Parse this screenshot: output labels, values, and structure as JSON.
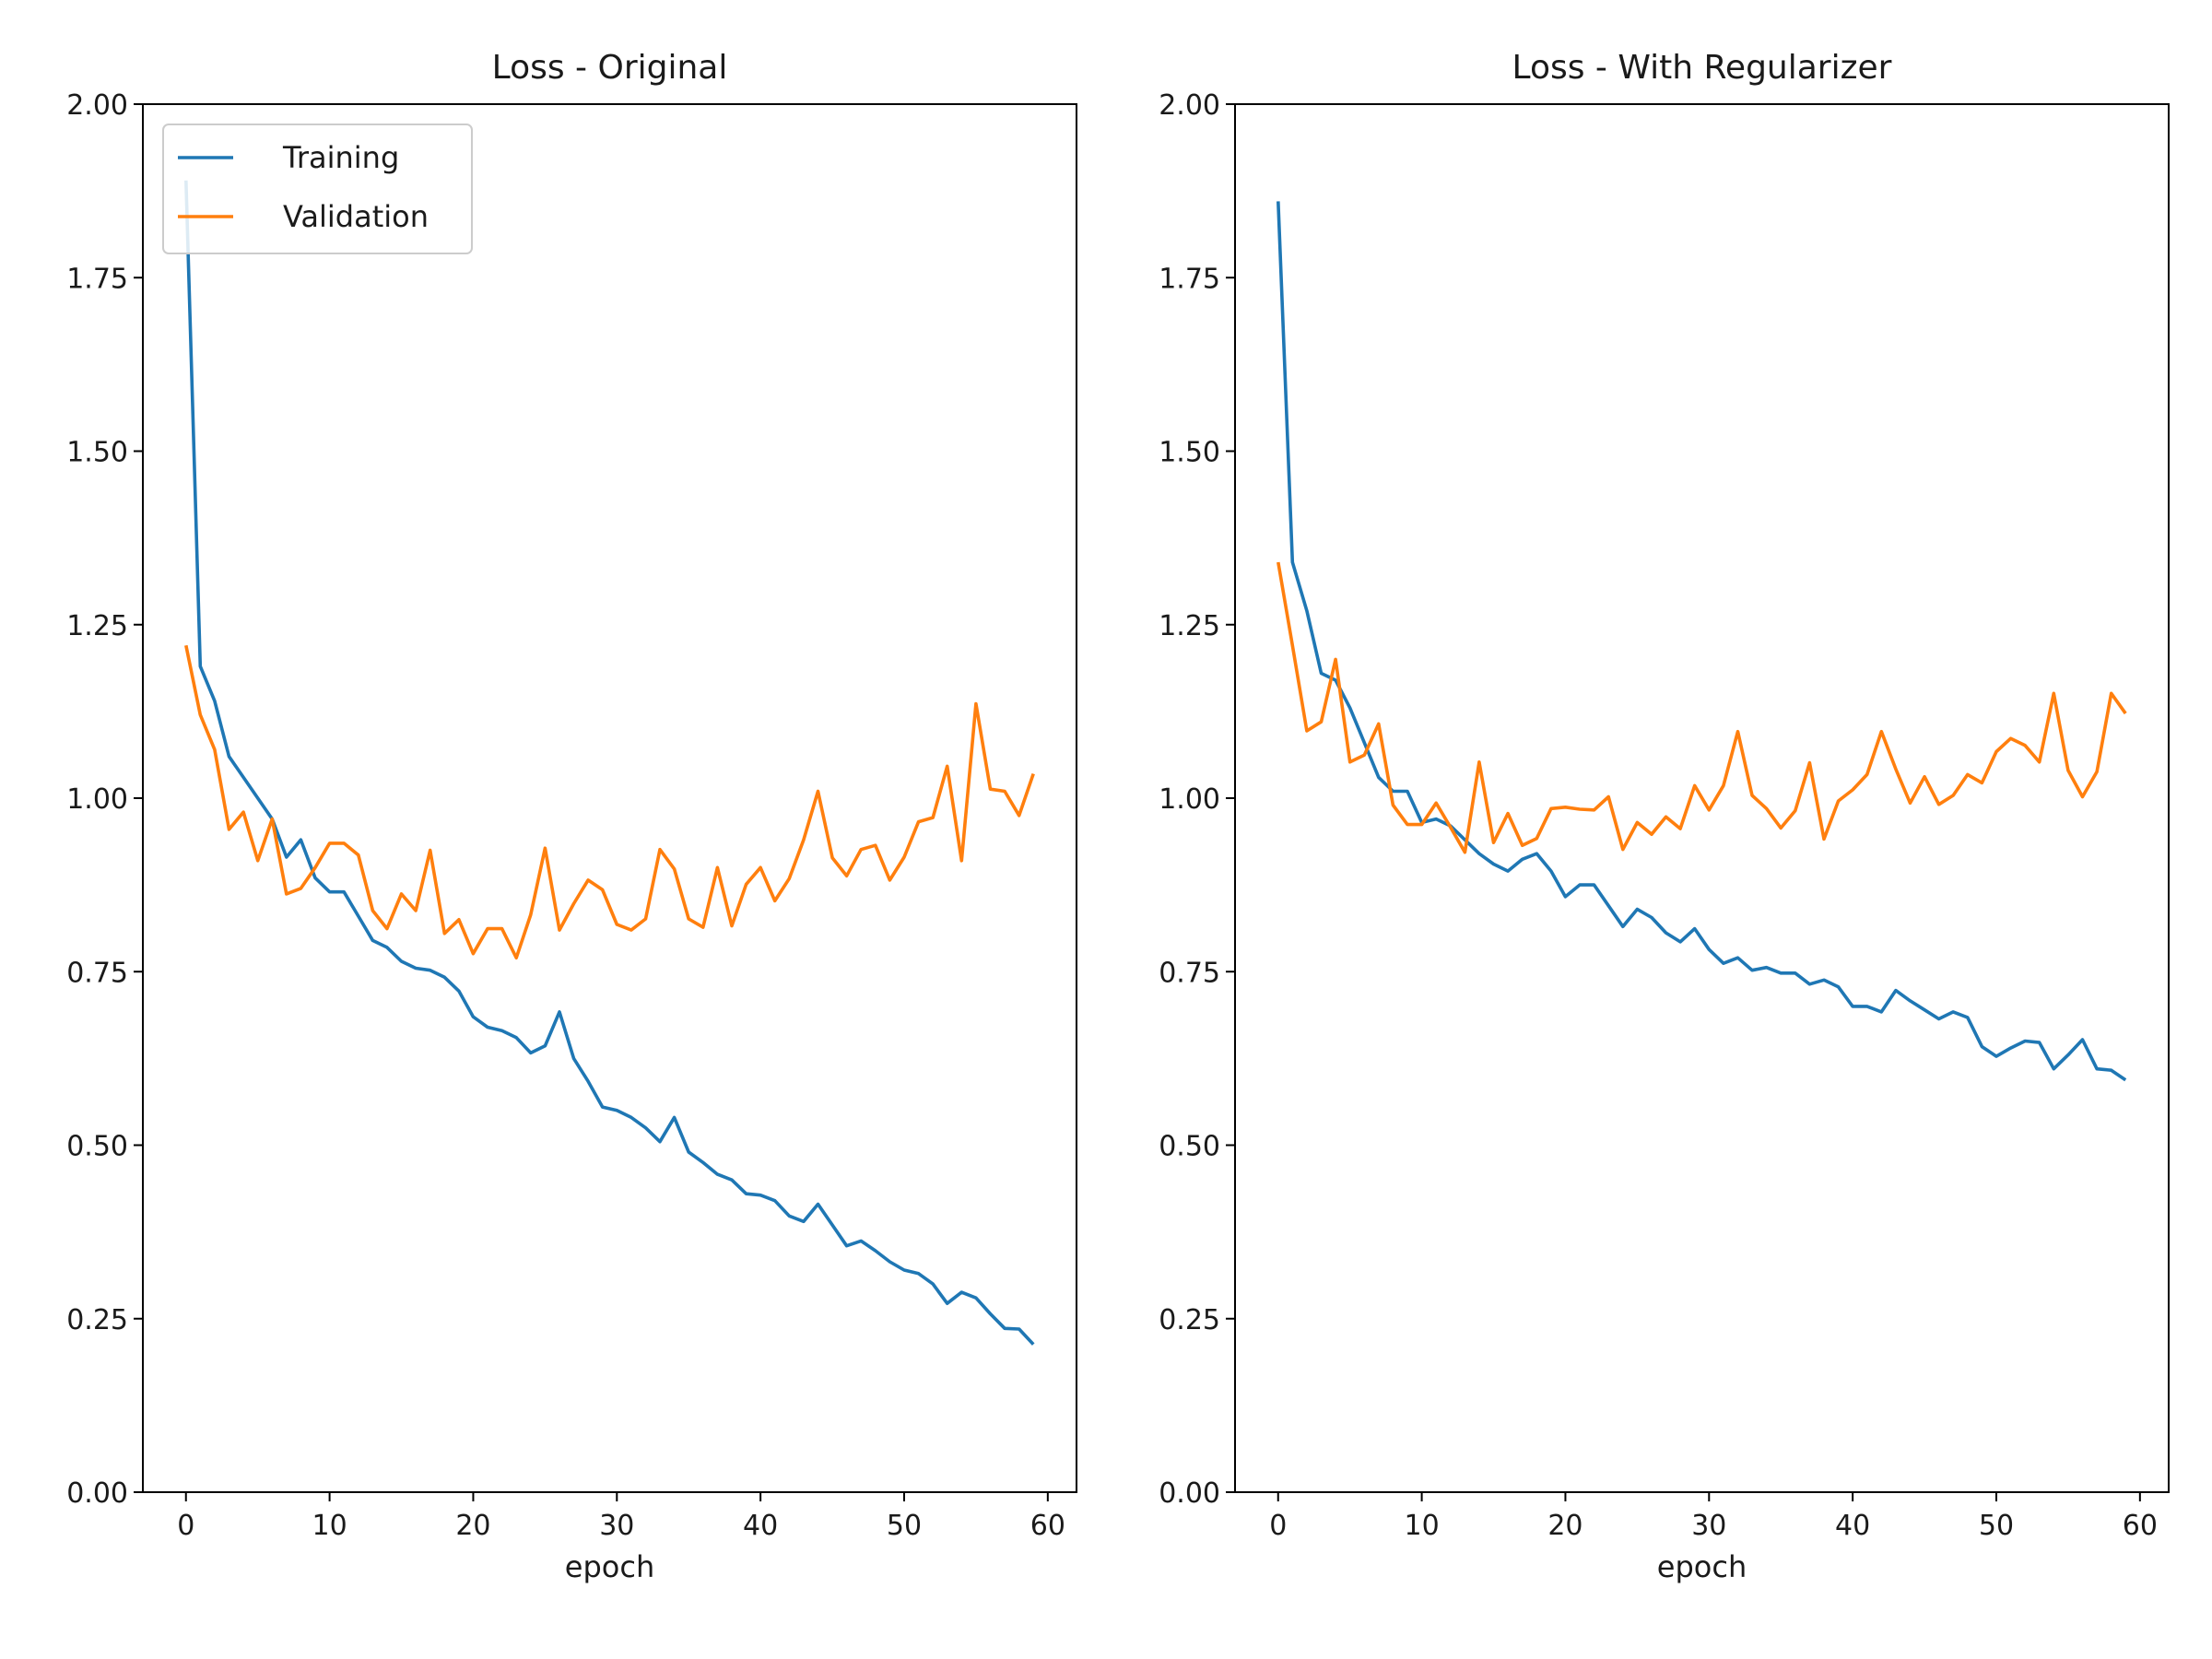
{
  "chart_data": [
    {
      "type": "line",
      "title": "Loss - Original",
      "xlabel": "epoch",
      "ylabel": "",
      "xlim": [
        -3,
        62
      ],
      "ylim": [
        0,
        2
      ],
      "xticks": [
        0,
        10,
        20,
        30,
        40,
        50,
        60
      ],
      "yticks": [
        "0.00",
        "0.25",
        "0.50",
        "0.75",
        "1.00",
        "1.25",
        "1.50",
        "1.75",
        "2.00"
      ],
      "grid": false,
      "legend": "upper-left",
      "x": [
        0,
        1,
        2,
        3,
        4,
        5,
        6,
        7,
        8,
        9,
        10,
        11,
        12,
        13,
        14,
        15,
        16,
        17,
        18,
        19,
        20,
        21,
        22,
        23,
        24,
        25,
        26,
        27,
        28,
        29,
        30,
        31,
        32,
        33,
        34,
        35,
        36,
        37,
        38,
        39,
        40,
        41,
        42,
        43,
        44,
        45,
        46,
        47,
        48,
        49,
        50,
        51,
        52,
        53,
        54,
        55,
        56,
        57,
        58,
        59
      ],
      "series": [
        {
          "name": "Training",
          "color": "#1f77b4",
          "values": [
            1.89,
            1.19,
            1.14,
            1.06,
            1.03,
            1.0,
            0.97,
            0.915,
            0.94,
            0.885,
            0.865,
            0.865,
            0.83,
            0.795,
            0.785,
            0.765,
            0.755,
            0.752,
            0.742,
            0.722,
            0.685,
            0.67,
            0.665,
            0.655,
            0.633,
            0.643,
            0.692,
            0.625,
            0.592,
            0.555,
            0.55,
            0.54,
            0.525,
            0.505,
            0.54,
            0.49,
            0.475,
            0.458,
            0.45,
            0.43,
            0.428,
            0.42,
            0.398,
            0.39,
            0.415,
            0.385,
            0.355,
            0.362,
            0.348,
            0.332,
            0.32,
            0.315,
            0.3,
            0.272,
            0.288,
            0.28,
            0.257,
            0.236,
            0.235,
            0.213
          ]
        },
        {
          "name": "Validation",
          "color": "#ff7f0e",
          "values": [
            1.22,
            1.12,
            1.07,
            0.955,
            0.98,
            0.91,
            0.97,
            0.862,
            0.87,
            0.9,
            0.935,
            0.935,
            0.918,
            0.838,
            0.812,
            0.862,
            0.838,
            0.925,
            0.805,
            0.825,
            0.776,
            0.812,
            0.812,
            0.77,
            0.832,
            0.928,
            0.81,
            0.848,
            0.882,
            0.868,
            0.818,
            0.81,
            0.826,
            0.926,
            0.898,
            0.826,
            0.814,
            0.9,
            0.816,
            0.876,
            0.9,
            0.852,
            0.884,
            0.94,
            1.01,
            0.914,
            0.888,
            0.926,
            0.932,
            0.882,
            0.915,
            0.966,
            0.972,
            1.046,
            0.91,
            1.136,
            1.013,
            1.01,
            0.975,
            1.035
          ]
        }
      ]
    },
    {
      "type": "line",
      "title": "Loss - With Regularizer",
      "xlabel": "epoch",
      "ylabel": "",
      "xlim": [
        -3,
        62
      ],
      "ylim": [
        0,
        2
      ],
      "xticks": [
        0,
        10,
        20,
        30,
        40,
        50,
        60
      ],
      "yticks": [
        "0.00",
        "0.25",
        "0.50",
        "0.75",
        "1.00",
        "1.25",
        "1.50",
        "1.75",
        "2.00"
      ],
      "grid": false,
      "legend": "none",
      "x": [
        0,
        1,
        2,
        3,
        4,
        5,
        6,
        7,
        8,
        9,
        10,
        11,
        12,
        13,
        14,
        15,
        16,
        17,
        18,
        19,
        20,
        21,
        22,
        23,
        24,
        25,
        26,
        27,
        28,
        29,
        30,
        31,
        32,
        33,
        34,
        35,
        36,
        37,
        38,
        39,
        40,
        41,
        42,
        43,
        44,
        45,
        46,
        47,
        48,
        49,
        50,
        51,
        52,
        53,
        54,
        55,
        56,
        57,
        58,
        59
      ],
      "series": [
        {
          "name": "Training",
          "color": "#1f77b4",
          "values": [
            1.86,
            1.34,
            1.27,
            1.18,
            1.17,
            1.13,
            1.08,
            1.03,
            1.01,
            1.01,
            0.965,
            0.97,
            0.96,
            0.94,
            0.92,
            0.905,
            0.895,
            0.912,
            0.92,
            0.895,
            0.858,
            0.875,
            0.875,
            0.845,
            0.815,
            0.84,
            0.828,
            0.806,
            0.793,
            0.812,
            0.782,
            0.762,
            0.77,
            0.752,
            0.756,
            0.748,
            0.748,
            0.732,
            0.738,
            0.728,
            0.7,
            0.7,
            0.692,
            0.723,
            0.708,
            0.695,
            0.682,
            0.692,
            0.684,
            0.642,
            0.628,
            0.64,
            0.65,
            0.648,
            0.61,
            0.63,
            0.652,
            0.61,
            0.608,
            0.594
          ]
        },
        {
          "name": "Validation",
          "color": "#ff7f0e",
          "values": [
            1.34,
            1.22,
            1.097,
            1.11,
            1.2,
            1.052,
            1.062,
            1.107,
            0.99,
            0.962,
            0.962,
            0.993,
            0.958,
            0.922,
            1.052,
            0.936,
            0.978,
            0.932,
            0.942,
            0.985,
            0.987,
            0.984,
            0.983,
            1.002,
            0.926,
            0.965,
            0.948,
            0.973,
            0.956,
            1.018,
            0.983,
            1.018,
            1.096,
            1.004,
            0.985,
            0.957,
            0.982,
            1.051,
            0.941,
            0.996,
            1.012,
            1.034,
            1.096,
            1.042,
            0.993,
            1.031,
            0.991,
            1.004,
            1.034,
            1.022,
            1.067,
            1.086,
            1.076,
            1.052,
            1.151,
            1.04,
            1.002,
            1.038,
            1.151,
            1.122
          ]
        }
      ]
    }
  ]
}
